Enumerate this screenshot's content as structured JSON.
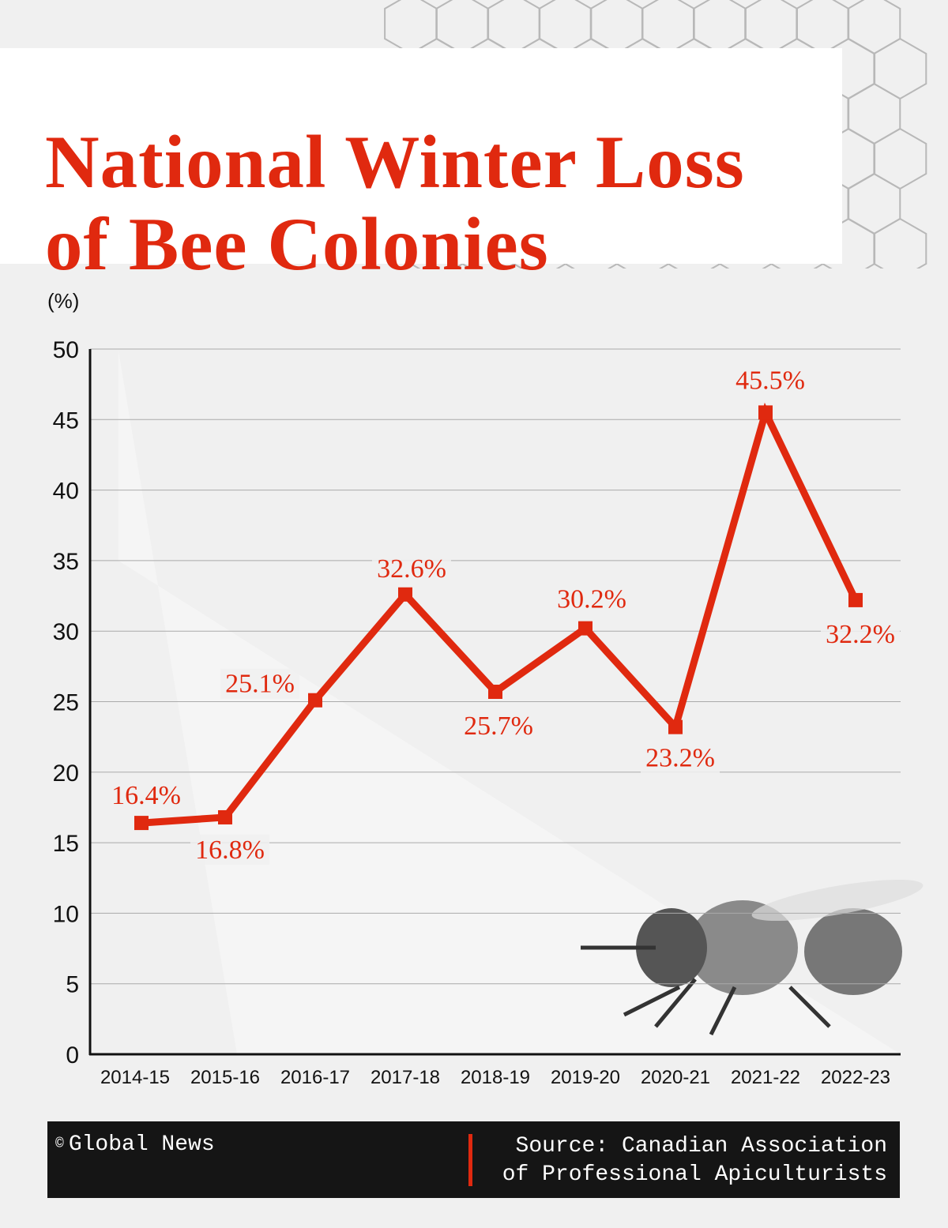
{
  "title": {
    "line1": "National Winter Loss",
    "line2": "of Bee Colonies"
  },
  "colors": {
    "accent": "#e0290f",
    "footer_bg": "#151515",
    "background": "#f0f0f0"
  },
  "chart_data": {
    "type": "line",
    "title": "National Winter Loss of Bee Colonies",
    "ylabel": "(%)",
    "xlabel": "",
    "ylim": [
      0,
      50
    ],
    "yticks": [
      0,
      5,
      10,
      15,
      20,
      25,
      30,
      35,
      40,
      45,
      50
    ],
    "grid": true,
    "categories": [
      "2014-15",
      "2015-16",
      "2016-17",
      "2017-18",
      "2018-19",
      "2019-20",
      "2020-21",
      "2021-22",
      "2022-23"
    ],
    "values": [
      16.4,
      16.8,
      25.1,
      32.6,
      25.7,
      30.2,
      23.2,
      45.5,
      32.2
    ],
    "data_labels": [
      "16.4%",
      "16.8%",
      "25.1%",
      "32.6%",
      "25.7%",
      "30.2%",
      "23.2%",
      "45.5%",
      "32.2%"
    ],
    "line_color": "#e0290f"
  },
  "footer": {
    "copyright_symbol": "©",
    "credit": "Global News",
    "source_line1": "Source: Canadian Association",
    "source_line2": "of Professional Apiculturists"
  },
  "decor": {
    "pattern": "honeycomb-hexagons",
    "illustration": "honeybee-photo"
  }
}
